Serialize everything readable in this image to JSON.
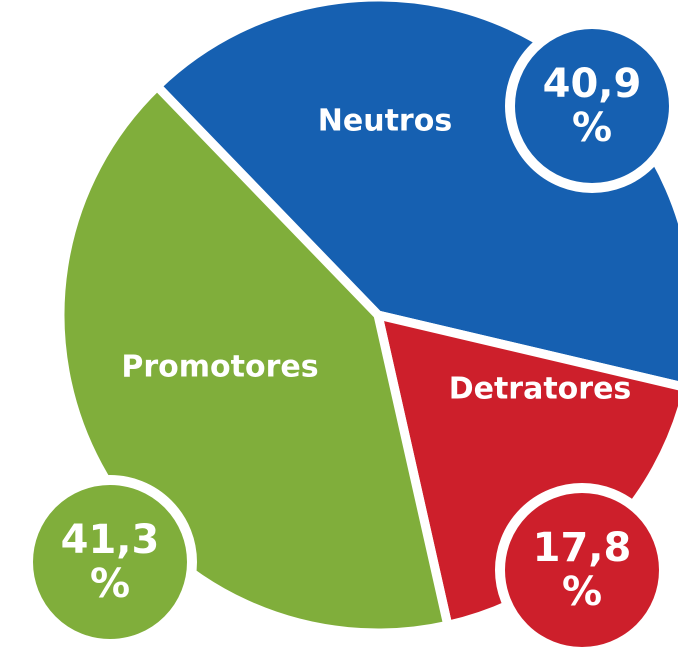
{
  "chart_data": {
    "type": "pie",
    "categories": [
      "Neutros",
      "Detratores",
      "Promotores"
    ],
    "values": [
      40.9,
      17.8,
      41.3
    ],
    "value_labels": [
      "40,9\n%",
      "17,8\n%",
      "41,3\n%"
    ],
    "colors": [
      "#1660b1",
      "#cd1f2b",
      "#80ae3b"
    ]
  }
}
